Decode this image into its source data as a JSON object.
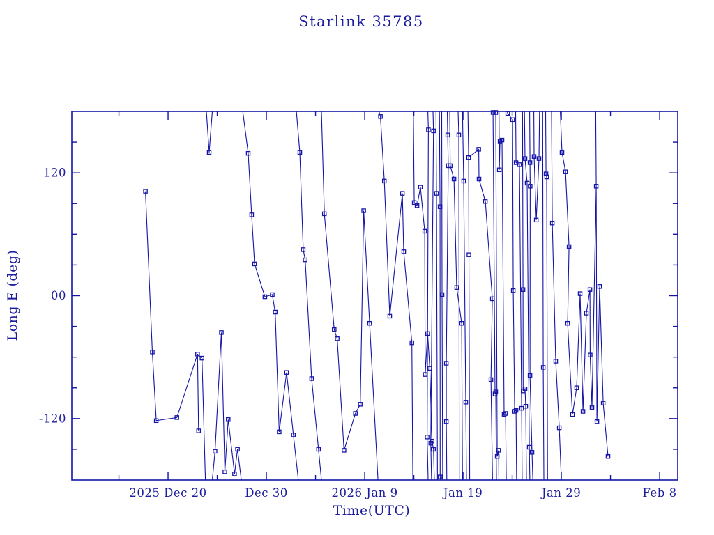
{
  "window": {
    "title": "Starlink 35785"
  },
  "colors": {
    "background": "#ffffff",
    "plot": "#1414a8",
    "text": "#1c1c9e"
  },
  "chart_data": {
    "type": "line",
    "title": "Starlink 35785",
    "xlabel": "Time(UTC)",
    "ylabel": "Long E (deg)",
    "x_unit": "days since 2025 Dec 20 00:00 UTC",
    "xlim": [
      -9.79,
      51.84
    ],
    "ylim": [
      -180,
      180
    ],
    "grid": false,
    "legend": "none",
    "marker": "open-square",
    "x_axis": {
      "major_step_days": 10,
      "minor_step_days": 5,
      "major_ticks": [
        {
          "day": 0,
          "label": "2025 Dec 20"
        },
        {
          "day": 10,
          "label": "Dec 30"
        },
        {
          "day": 20,
          "label": "2026 Jan  9"
        },
        {
          "day": 30,
          "label": "Jan 19"
        },
        {
          "day": 40,
          "label": "Jan 29"
        },
        {
          "day": 50,
          "label": "Feb  8"
        }
      ]
    },
    "y_axis": {
      "minor_step_deg": 30,
      "major_ticks": [
        {
          "deg": 120,
          "label": "120"
        },
        {
          "deg": 0,
          "label": "00"
        },
        {
          "deg": -120,
          "label": "-120"
        }
      ]
    },
    "series": [
      {
        "points": [
          [
            -2.3,
            102
          ],
          [
            -1.6,
            -55
          ],
          [
            -1.2,
            -122
          ],
          [
            0.9,
            -119
          ],
          [
            3.0,
            -57
          ],
          [
            3.1,
            -132
          ]
        ]
      },
      {
        "points": [
          [
            3.0,
            -57,
            "e"
          ],
          [
            3.45,
            -61
          ],
          [
            3.8,
            -180,
            "e"
          ]
        ]
      },
      {
        "points": [
          [
            3.9,
            180,
            "e"
          ],
          [
            4.18,
            140
          ],
          [
            4.5,
            180,
            "e"
          ]
        ]
      },
      {
        "points": [
          [
            4.5,
            -180,
            "e"
          ],
          [
            4.78,
            -152
          ],
          [
            5.42,
            -36
          ],
          [
            5.78,
            -172
          ],
          [
            6.12,
            -121
          ],
          [
            6.76,
            -174
          ],
          [
            7.06,
            -150
          ],
          [
            7.45,
            -180,
            "e"
          ]
        ]
      },
      {
        "points": [
          [
            7.6,
            180,
            "e"
          ],
          [
            8.15,
            139
          ],
          [
            8.5,
            79
          ],
          [
            8.8,
            31
          ],
          [
            9.85,
            -1
          ],
          [
            10.6,
            1
          ],
          [
            10.9,
            -16
          ],
          [
            11.3,
            -133
          ],
          [
            12.05,
            -75
          ],
          [
            12.75,
            -136
          ],
          [
            13.25,
            -180,
            "e"
          ]
        ]
      },
      {
        "points": [
          [
            13.05,
            180,
            "e"
          ],
          [
            13.4,
            140
          ],
          [
            13.75,
            45
          ],
          [
            13.95,
            35
          ],
          [
            14.6,
            -81
          ],
          [
            15.3,
            -150
          ],
          [
            15.6,
            -180,
            "e"
          ]
        ]
      },
      {
        "points": [
          [
            15.6,
            180,
            "e"
          ],
          [
            15.9,
            80
          ],
          [
            16.9,
            -33
          ],
          [
            17.2,
            -42
          ],
          [
            17.9,
            -151
          ],
          [
            19.05,
            -115
          ],
          [
            19.55,
            -106
          ],
          [
            19.9,
            83
          ],
          [
            20.5,
            -27
          ],
          [
            21.35,
            -180,
            "e"
          ]
        ]
      },
      {
        "points": [
          [
            21.45,
            180,
            "e"
          ],
          [
            21.6,
            175
          ],
          [
            22.0,
            112
          ],
          [
            22.55,
            -20
          ],
          [
            23.83,
            100
          ],
          [
            23.97,
            43
          ],
          [
            24.8,
            -46
          ],
          [
            24.9,
            -180,
            "e"
          ]
        ]
      },
      {
        "points": [
          [
            24.95,
            180,
            "e"
          ],
          [
            25.04,
            91
          ],
          [
            25.32,
            88
          ],
          [
            25.67,
            106
          ],
          [
            26.1,
            63
          ],
          [
            26.15,
            -77
          ],
          [
            26.4,
            -37
          ],
          [
            26.62,
            -71
          ],
          [
            26.85,
            -142
          ],
          [
            27.0,
            -150
          ],
          [
            27.08,
            -180,
            "e"
          ]
        ]
      },
      {
        "points": [
          [
            26.42,
            180,
            "e"
          ],
          [
            26.48,
            162
          ],
          [
            26.35,
            -138
          ],
          [
            26.45,
            -180,
            "e"
          ]
        ]
      },
      {
        "points": [
          [
            26.95,
            180,
            "e"
          ],
          [
            27.0,
            161
          ],
          [
            26.72,
            -144
          ],
          [
            26.8,
            -180,
            "e"
          ]
        ]
      },
      {
        "points": [
          [
            27.25,
            180,
            "e"
          ],
          [
            27.3,
            100
          ],
          [
            27.4,
            -180,
            "e"
          ]
        ]
      },
      {
        "points": [
          [
            27.6,
            180,
            "e"
          ],
          [
            27.66,
            87
          ],
          [
            27.68,
            -177
          ],
          [
            27.72,
            -180,
            "e"
          ]
        ]
      },
      {
        "points": [
          [
            27.83,
            180,
            "e"
          ],
          [
            27.87,
            1
          ],
          [
            27.93,
            -180,
            "e"
          ]
        ]
      },
      {
        "points": [
          [
            28.4,
            180,
            "e"
          ],
          [
            28.44,
            157
          ],
          [
            28.5,
            127
          ],
          [
            28.3,
            -66
          ],
          [
            28.3,
            -123
          ],
          [
            28.35,
            -180,
            "e"
          ]
        ]
      },
      {
        "points": [
          [
            28.65,
            180,
            "e"
          ],
          [
            28.7,
            127
          ],
          [
            29.08,
            114
          ],
          [
            29.36,
            8
          ],
          [
            29.86,
            -27
          ],
          [
            29.95,
            -180,
            "e"
          ]
        ]
      },
      {
        "points": [
          [
            29.5,
            180,
            "e"
          ],
          [
            29.57,
            157
          ],
          [
            29.62,
            -180,
            "e"
          ]
        ]
      },
      {
        "points": [
          [
            29.95,
            180,
            "e"
          ],
          [
            30.07,
            112
          ],
          [
            30.28,
            -104
          ],
          [
            30.35,
            -180,
            "e"
          ]
        ]
      },
      {
        "points": [
          [
            30.5,
            180,
            "e"
          ],
          [
            30.57,
            135
          ],
          [
            30.6,
            40
          ],
          [
            30.68,
            -180,
            "e"
          ]
        ]
      },
      {
        "points": [
          [
            30.57,
            135,
            "e"
          ],
          [
            31.6,
            143
          ],
          [
            31.63,
            114
          ],
          [
            32.27,
            92
          ],
          [
            32.98,
            -3
          ],
          [
            32.84,
            -82
          ],
          [
            33.0,
            -180,
            "e"
          ]
        ]
      },
      {
        "points": [
          [
            33.0,
            180,
            "e"
          ],
          [
            33.05,
            179
          ],
          [
            33.26,
            -96
          ],
          [
            33.33,
            -94
          ],
          [
            33.4,
            -180,
            "e"
          ]
        ]
      },
      {
        "points": [
          [
            33.3,
            180,
            "e"
          ],
          [
            33.33,
            179
          ],
          [
            33.48,
            -157
          ],
          [
            33.62,
            -151
          ],
          [
            33.65,
            -180,
            "e"
          ]
        ]
      },
      {
        "points": [
          [
            33.66,
            180,
            "e"
          ],
          [
            33.69,
            123
          ],
          [
            33.76,
            151
          ],
          [
            33.97,
            152
          ],
          [
            34.18,
            -116
          ],
          [
            34.33,
            -115
          ],
          [
            34.4,
            -180,
            "e"
          ]
        ]
      },
      {
        "points": [
          [
            34.5,
            180,
            "e"
          ],
          [
            34.54,
            178
          ],
          [
            35.04,
            172
          ],
          [
            35.11,
            5
          ],
          [
            35.25,
            -113
          ],
          [
            35.39,
            -112
          ],
          [
            35.45,
            -180,
            "e"
          ]
        ]
      },
      {
        "points": [
          [
            35.35,
            180,
            "e"
          ],
          [
            35.39,
            130
          ],
          [
            35.74,
            128
          ],
          [
            35.96,
            -110
          ],
          [
            36.02,
            -180,
            "e"
          ]
        ]
      },
      {
        "points": [
          [
            36.05,
            180,
            "e"
          ],
          [
            36.1,
            6
          ],
          [
            36.12,
            -93
          ],
          [
            36.31,
            -91
          ],
          [
            36.38,
            -108
          ],
          [
            36.45,
            -180,
            "e"
          ]
        ]
      },
      {
        "points": [
          [
            36.25,
            180,
            "e"
          ],
          [
            36.31,
            134
          ],
          [
            36.52,
            110
          ],
          [
            36.74,
            -148
          ],
          [
            36.8,
            -180,
            "e"
          ]
        ]
      },
      {
        "points": [
          [
            36.78,
            180,
            "e"
          ],
          [
            36.81,
            130
          ],
          [
            36.83,
            107
          ],
          [
            36.81,
            -78
          ],
          [
            37.02,
            -153
          ],
          [
            37.1,
            -180,
            "e"
          ]
        ]
      },
      {
        "points": [
          [
            37.2,
            180,
            "e"
          ],
          [
            37.23,
            136
          ],
          [
            37.45,
            74
          ],
          [
            37.73,
            134
          ],
          [
            37.78,
            180,
            "e"
          ]
        ]
      },
      {
        "points": [
          [
            38.1,
            180,
            "e"
          ],
          [
            38.16,
            -70
          ],
          [
            38.22,
            -180,
            "e"
          ]
        ]
      },
      {
        "points": [
          [
            38.4,
            180,
            "e"
          ],
          [
            38.44,
            119
          ],
          [
            38.51,
            116
          ],
          [
            38.6,
            -180,
            "e"
          ]
        ]
      },
      {
        "points": [
          [
            39.0,
            180,
            "e"
          ],
          [
            39.08,
            71
          ],
          [
            39.43,
            -64
          ],
          [
            39.79,
            -129
          ],
          [
            40.0,
            -180,
            "e"
          ]
        ]
      },
      {
        "points": [
          [
            39.9,
            180,
            "e"
          ],
          [
            40.07,
            140
          ],
          [
            40.43,
            121
          ],
          [
            40.78,
            48
          ],
          [
            40.64,
            -27
          ],
          [
            41.13,
            -116
          ],
          [
            41.56,
            -90
          ],
          [
            41.91,
            2
          ],
          [
            42.2,
            -113
          ],
          [
            42.55,
            -17
          ],
          [
            42.91,
            6
          ],
          [
            42.93,
            -58
          ],
          [
            43.12,
            -109
          ],
          [
            43.55,
            107
          ],
          [
            43.62,
            -123
          ],
          [
            43.9,
            9
          ],
          [
            44.26,
            -105
          ],
          [
            44.75,
            -157
          ]
        ]
      },
      {
        "points": [
          [
            43.5,
            180,
            "e"
          ],
          [
            43.55,
            107,
            "e"
          ]
        ]
      }
    ]
  }
}
